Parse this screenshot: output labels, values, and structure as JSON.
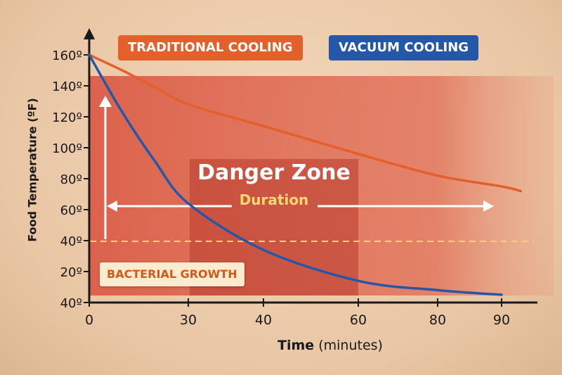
{
  "chart_data": {
    "type": "line",
    "xlabel_bold": "Time",
    "xlabel_rest": "(minutes)",
    "ylabel": "Food Temperature (ºF)",
    "x_ticks": [
      0,
      30,
      40,
      60,
      80,
      90
    ],
    "y_tick_labels": [
      "160º",
      "140º",
      "120º",
      "100º",
      "80º",
      "60º",
      "40º",
      "20º",
      "40º"
    ],
    "series": [
      {
        "name": "TRADITIONAL COOLING",
        "color": "#e4602a",
        "x": [
          0,
          10,
          20,
          30,
          40,
          60,
          80,
          90,
          93
        ],
        "y": [
          160,
          150,
          139,
          128,
          114,
          96,
          82,
          75,
          72
        ]
      },
      {
        "name": "VACUUM COOLING",
        "color": "#2457a8",
        "x": [
          0,
          10,
          20,
          30,
          40,
          60,
          80,
          90
        ],
        "y": [
          160,
          123,
          91,
          64,
          34,
          14,
          8,
          5
        ]
      }
    ],
    "annotations": {
      "zone_title": "Danger Zone",
      "duration": "Duration",
      "bacterial": "BACTERIAL GROWTH"
    },
    "threshold_line_at_tick": "40º",
    "grid": false,
    "legend_placement": "top"
  }
}
